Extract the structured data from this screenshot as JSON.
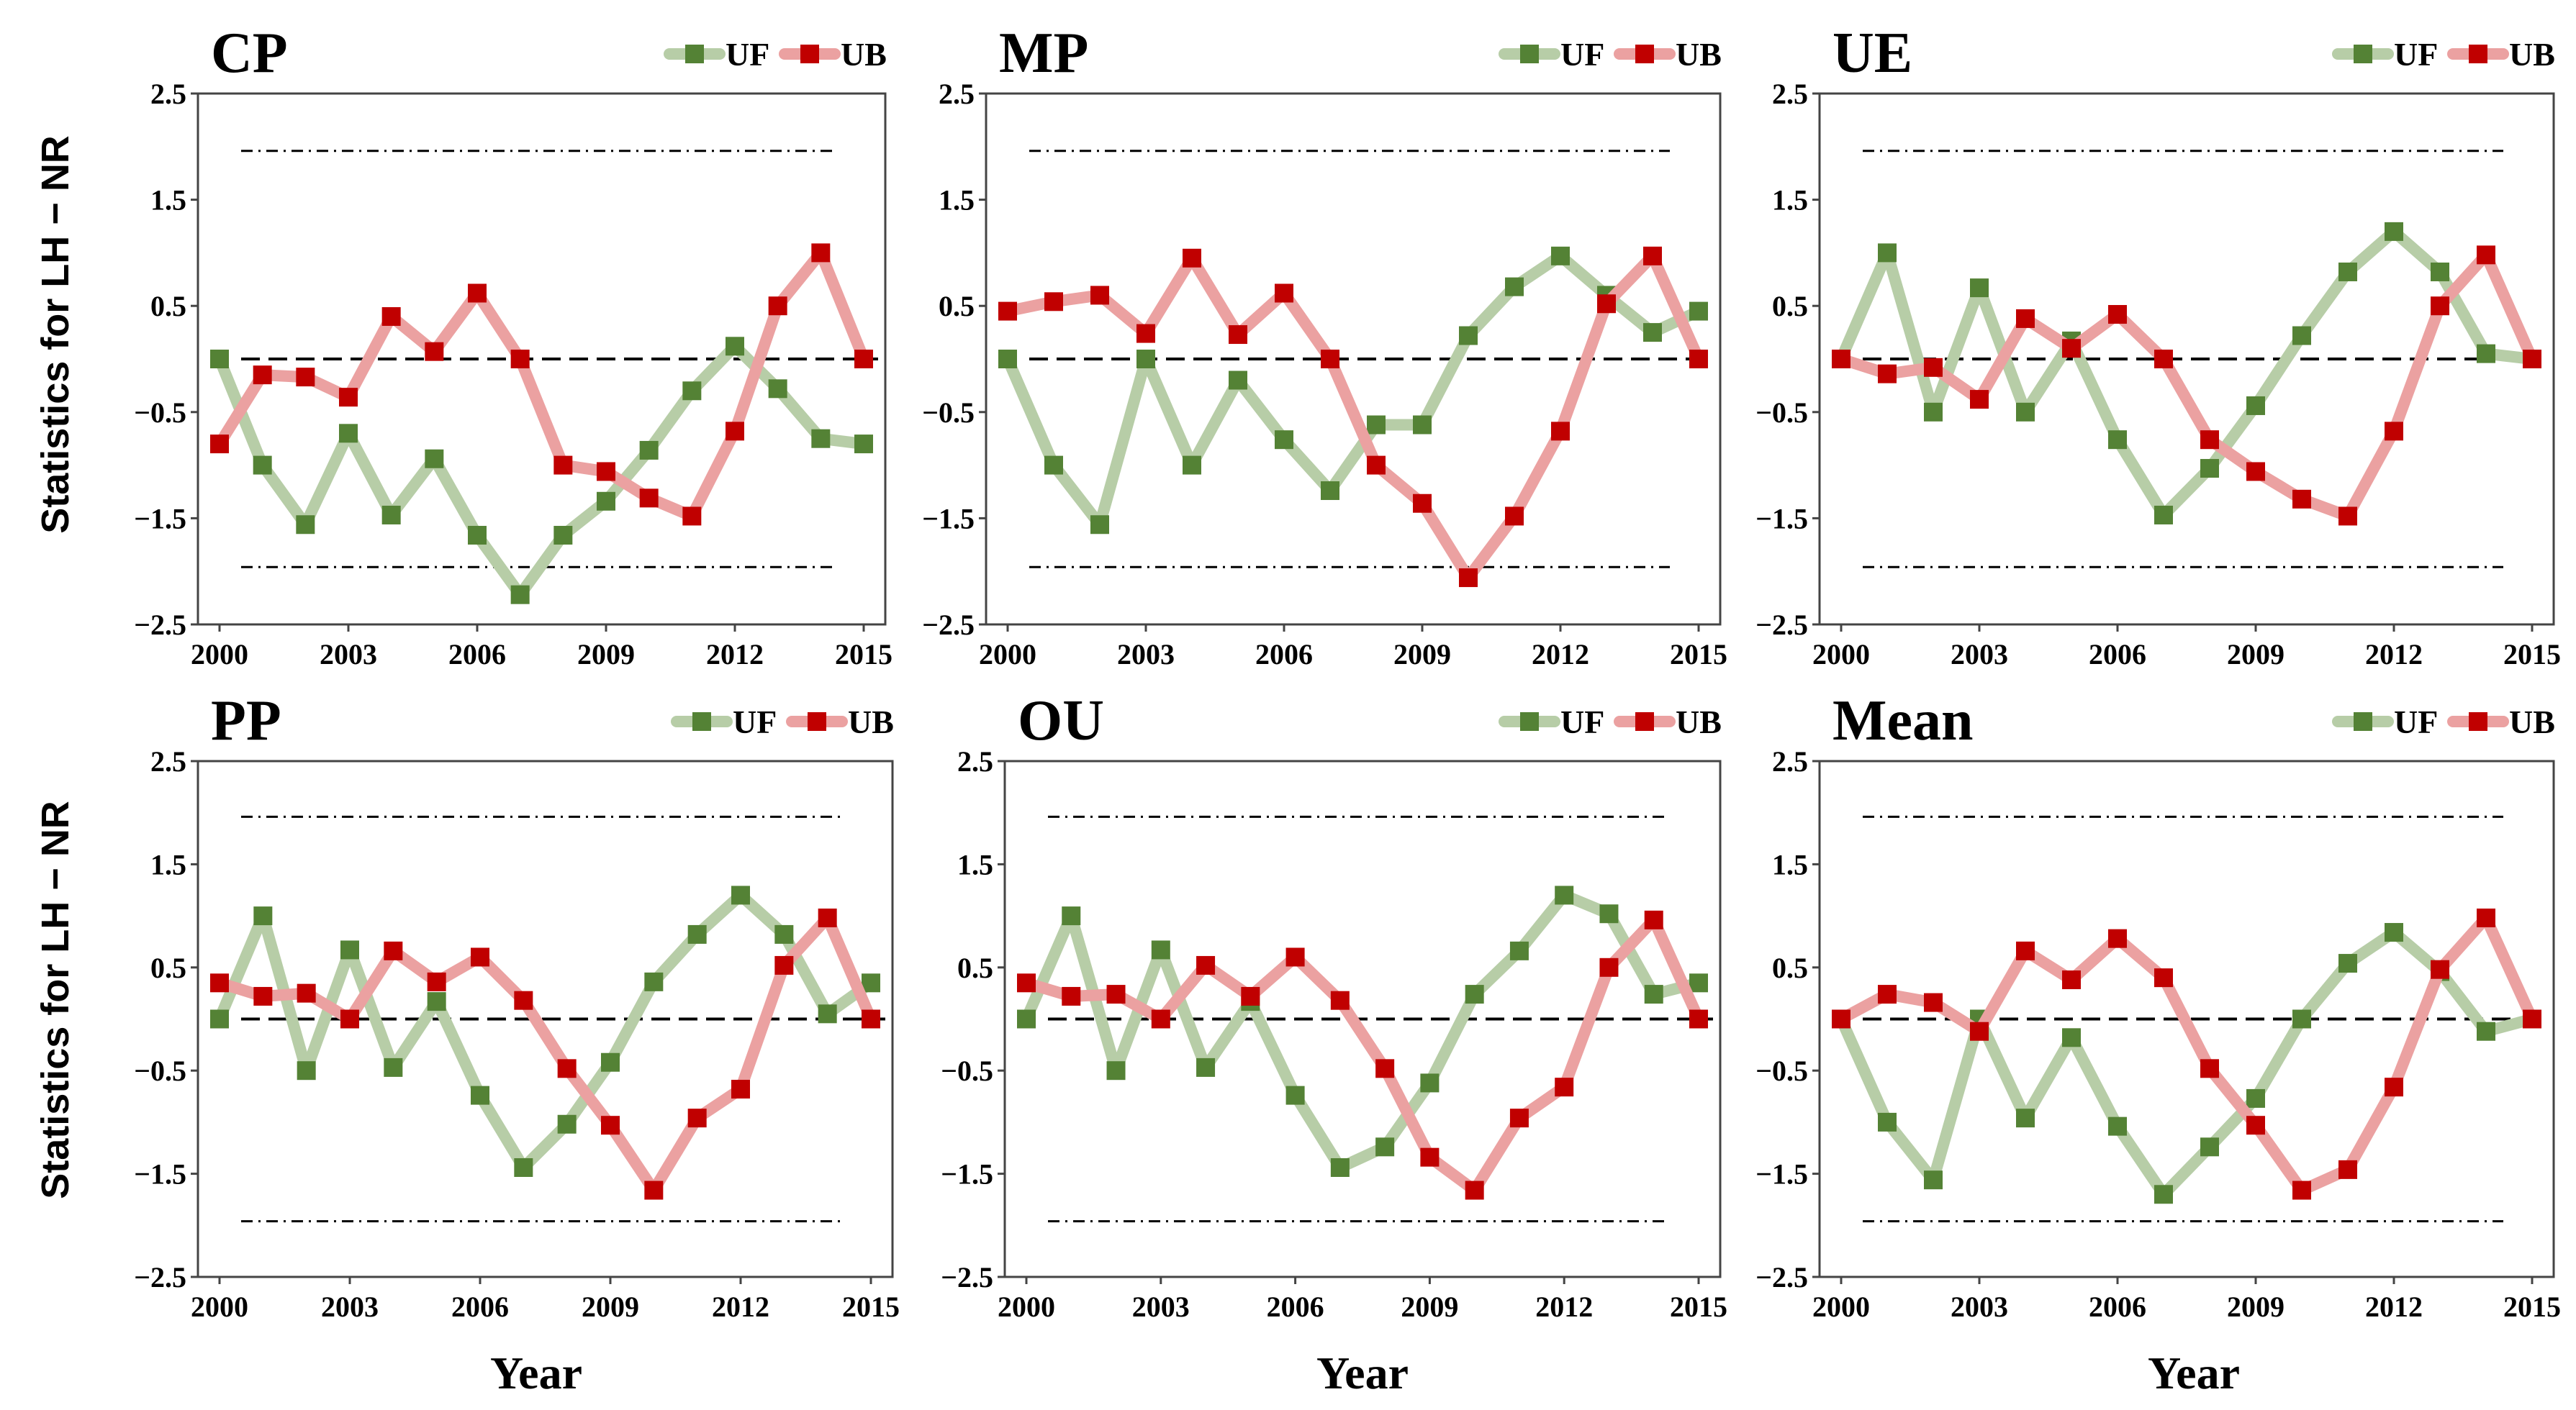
{
  "figure": {
    "ylabel": "Statistics for LH − NR",
    "xlabel": "Year",
    "legend": {
      "uf": "UF",
      "ub": "UB"
    },
    "colors": {
      "uf_line": "#b7cda7",
      "uf_marker": "#548235",
      "ub_line": "#eba1a1",
      "ub_marker": "#c00000"
    }
  },
  "chart_data": [
    {
      "type": "line",
      "title": "CP",
      "xlabel": "Year",
      "ylabel": "Statistics for LH − NR",
      "x": [
        2000,
        2001,
        2002,
        2003,
        2004,
        2005,
        2006,
        2007,
        2008,
        2009,
        2010,
        2011,
        2012,
        2013,
        2014,
        2015
      ],
      "xticks": [
        "2000",
        "2003",
        "2006",
        "2009",
        "2012",
        "2015"
      ],
      "yticks": [
        "2.5",
        "1.5",
        "0.5",
        "-0.5",
        "-1.5",
        "-2.5"
      ],
      "ylim": [
        -2.5,
        2.5
      ],
      "confidence": [
        1.96,
        -1.96
      ],
      "zero_line": 0,
      "series": [
        {
          "name": "UF",
          "values": [
            0,
            -1.0,
            -1.56,
            -0.7,
            -1.47,
            -0.94,
            -1.66,
            -2.22,
            -1.66,
            -1.34,
            -0.86,
            -0.3,
            0.12,
            -0.28,
            -0.75,
            -0.8
          ]
        },
        {
          "name": "UB",
          "values": [
            -0.8,
            -0.15,
            -0.17,
            -0.36,
            0.4,
            0.07,
            0.62,
            0,
            -1.0,
            -1.06,
            -1.31,
            -1.48,
            -0.68,
            0.5,
            1.0,
            0
          ]
        }
      ]
    },
    {
      "type": "line",
      "title": "MP",
      "xlabel": "Year",
      "ylabel": "",
      "x": [
        2000,
        2001,
        2002,
        2003,
        2004,
        2005,
        2006,
        2007,
        2008,
        2009,
        2010,
        2011,
        2012,
        2013,
        2014,
        2015
      ],
      "xticks": [
        "2000",
        "2003",
        "2006",
        "2009",
        "2012",
        "2015"
      ],
      "yticks": [
        "2.5",
        "1.5",
        "0.5",
        "-0.5",
        "-1.5",
        "-2.5"
      ],
      "ylim": [
        -2.5,
        2.5
      ],
      "confidence": [
        1.96,
        -1.96
      ],
      "zero_line": 0,
      "series": [
        {
          "name": "UF",
          "values": [
            0,
            -1.0,
            -1.56,
            0,
            -1.0,
            -0.2,
            -0.76,
            -1.24,
            -0.62,
            -0.62,
            0.22,
            0.68,
            0.97,
            0.6,
            0.25,
            0.45
          ]
        },
        {
          "name": "UB",
          "values": [
            0.45,
            0.54,
            0.6,
            0.24,
            0.95,
            0.23,
            0.62,
            0,
            -1.0,
            -1.36,
            -2.06,
            -1.48,
            -0.68,
            0.52,
            0.97,
            0
          ]
        }
      ]
    },
    {
      "type": "line",
      "title": "UE",
      "xlabel": "Year",
      "ylabel": "",
      "x": [
        2000,
        2001,
        2002,
        2003,
        2004,
        2005,
        2006,
        2007,
        2008,
        2009,
        2010,
        2011,
        2012,
        2013,
        2014,
        2015
      ],
      "xticks": [
        "2000",
        "2003",
        "2006",
        "2009",
        "2012",
        "2015"
      ],
      "yticks": [
        "2.5",
        "1.5",
        "0.5",
        "-0.5",
        "-1.5",
        "-2.5"
      ],
      "ylim": [
        -2.5,
        2.5
      ],
      "confidence": [
        1.96,
        -1.96
      ],
      "zero_line": 0,
      "series": [
        {
          "name": "UF",
          "values": [
            0,
            1.0,
            -0.5,
            0.67,
            -0.5,
            0.17,
            -0.76,
            -1.47,
            -1.03,
            -0.44,
            0.22,
            0.82,
            1.2,
            0.82,
            0.05,
            0
          ]
        },
        {
          "name": "UB",
          "values": [
            0,
            -0.14,
            -0.08,
            -0.38,
            0.38,
            0.1,
            0.42,
            0,
            -0.76,
            -1.06,
            -1.32,
            -1.48,
            -0.68,
            0.5,
            0.98,
            0
          ]
        }
      ]
    },
    {
      "type": "line",
      "title": "PP",
      "xlabel": "Year",
      "ylabel": "Statistics for LH − NR",
      "x": [
        2000,
        2001,
        2002,
        2003,
        2004,
        2005,
        2006,
        2007,
        2008,
        2009,
        2010,
        2011,
        2012,
        2013,
        2014,
        2015
      ],
      "xticks": [
        "2000",
        "2003",
        "2006",
        "2009",
        "2012",
        "2015"
      ],
      "yticks": [
        "2.5",
        "1.5",
        "0.5",
        "-0.5",
        "-1.5",
        "-2.5"
      ],
      "ylim": [
        -2.5,
        2.5
      ],
      "confidence": [
        1.96,
        -1.96
      ],
      "zero_line": 0,
      "series": [
        {
          "name": "UF",
          "values": [
            0,
            1.0,
            -0.5,
            0.67,
            -0.47,
            0.17,
            -0.74,
            -1.44,
            -1.02,
            -0.42,
            0.36,
            0.82,
            1.2,
            0.82,
            0.05,
            0.35
          ]
        },
        {
          "name": "UB",
          "values": [
            0.35,
            0.22,
            0.25,
            0,
            0.66,
            0.36,
            0.6,
            0.18,
            -0.48,
            -1.03,
            -1.66,
            -0.96,
            -0.68,
            0.52,
            0.98,
            0
          ]
        }
      ]
    },
    {
      "type": "line",
      "title": "OU",
      "xlabel": "Year",
      "ylabel": "",
      "x": [
        2000,
        2001,
        2002,
        2003,
        2004,
        2005,
        2006,
        2007,
        2008,
        2009,
        2010,
        2011,
        2012,
        2013,
        2014,
        2015
      ],
      "xticks": [
        "2000",
        "2003",
        "2006",
        "2009",
        "2012",
        "2015"
      ],
      "yticks": [
        "2.5",
        "1.5",
        "0.5",
        "-0.5",
        "-1.5",
        "-2.5"
      ],
      "ylim": [
        -2.5,
        2.5
      ],
      "confidence": [
        1.96,
        -1.96
      ],
      "zero_line": 0,
      "series": [
        {
          "name": "UF",
          "values": [
            0,
            1.0,
            -0.5,
            0.67,
            -0.47,
            0.17,
            -0.74,
            -1.44,
            -1.24,
            -0.62,
            0.24,
            0.66,
            1.2,
            1.02,
            0.24,
            0.35
          ]
        },
        {
          "name": "UB",
          "values": [
            0.35,
            0.22,
            0.24,
            0,
            0.52,
            0.22,
            0.6,
            0.18,
            -0.48,
            -1.34,
            -1.66,
            -0.96,
            -0.66,
            0.5,
            0.96,
            0
          ]
        }
      ]
    },
    {
      "type": "line",
      "title": "Mean",
      "xlabel": "Year",
      "ylabel": "",
      "x": [
        2000,
        2001,
        2002,
        2003,
        2004,
        2005,
        2006,
        2007,
        2008,
        2009,
        2010,
        2011,
        2012,
        2013,
        2014,
        2015
      ],
      "xticks": [
        "2000",
        "2003",
        "2006",
        "2009",
        "2012",
        "2015"
      ],
      "yticks": [
        "2.5",
        "1.5",
        "0.5",
        "-0.5",
        "-1.5",
        "-2.5"
      ],
      "ylim": [
        -2.5,
        2.5
      ],
      "confidence": [
        1.96,
        -1.96
      ],
      "zero_line": 0,
      "series": [
        {
          "name": "UF",
          "values": [
            0,
            -1.0,
            -1.56,
            0,
            -0.96,
            -0.18,
            -1.04,
            -1.7,
            -1.24,
            -0.77,
            0,
            0.54,
            0.84,
            0.46,
            -0.12,
            0
          ]
        },
        {
          "name": "UB",
          "values": [
            0,
            0.24,
            0.16,
            -0.12,
            0.66,
            0.38,
            0.78,
            0.4,
            -0.48,
            -1.03,
            -1.66,
            -1.46,
            -0.66,
            0.48,
            0.98,
            0
          ]
        }
      ]
    }
  ]
}
